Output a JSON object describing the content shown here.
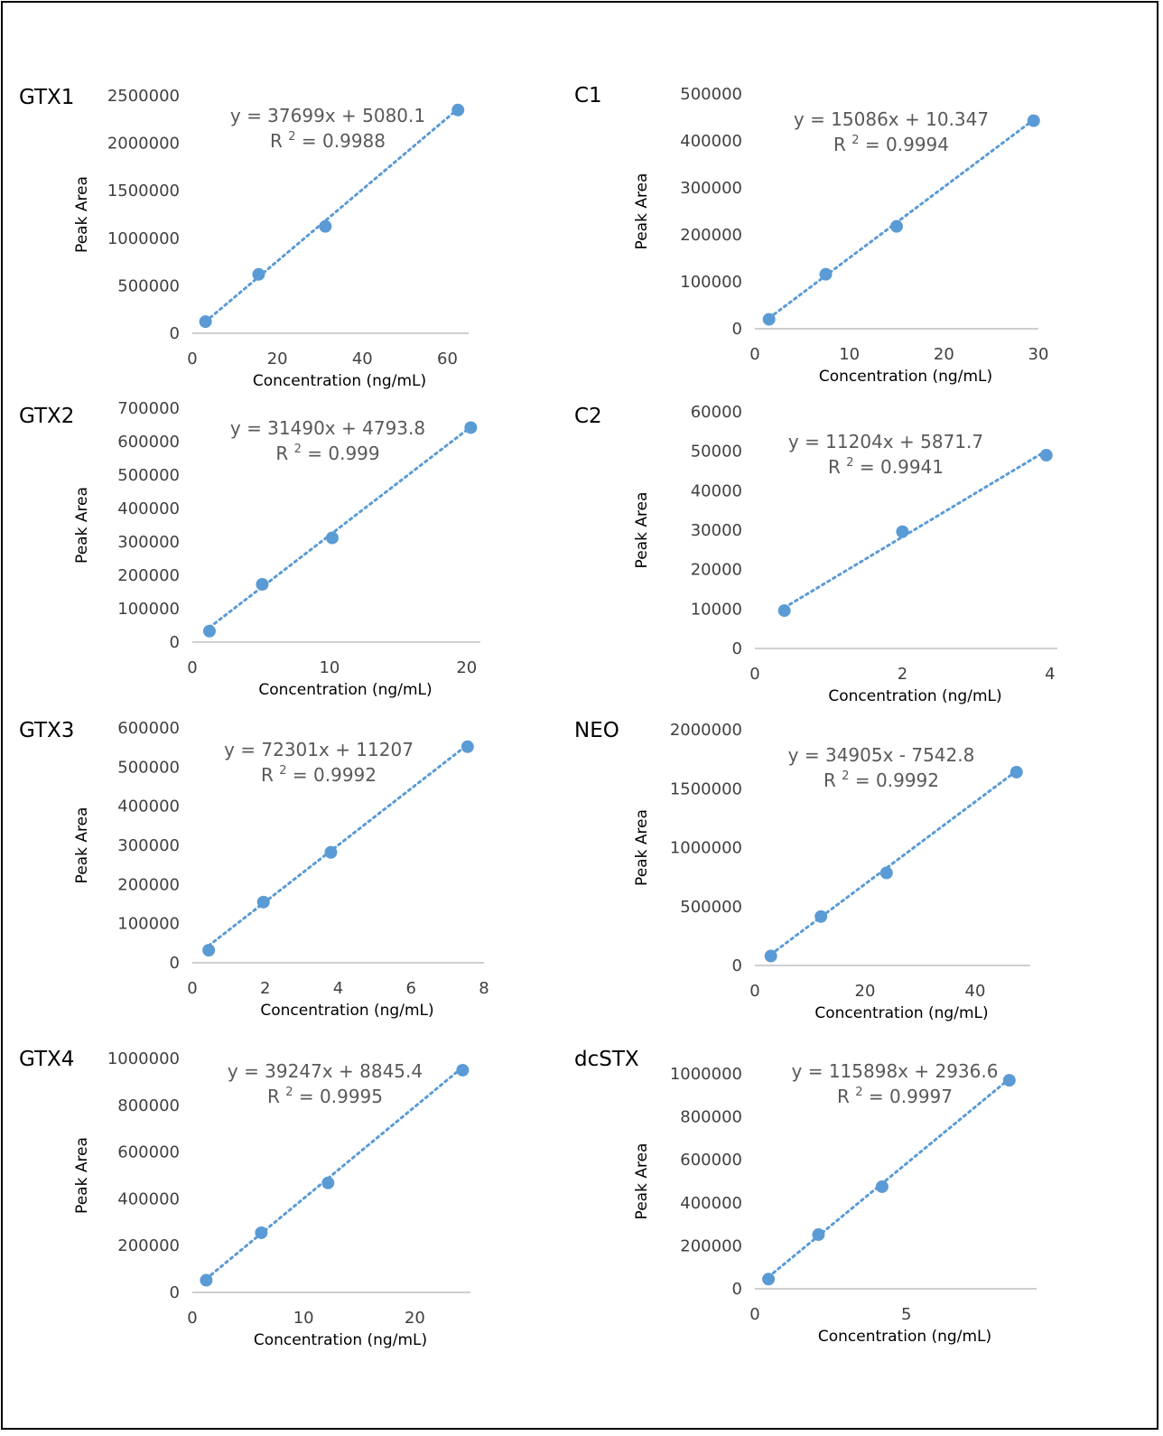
{
  "marker_color": "#5b9bd5",
  "chart_data": [
    {
      "type": "scatter",
      "title": "GTX1",
      "xlabel": "Concentration (ng/mL)",
      "ylabel": "Peak Area",
      "xlim": [
        0,
        65
      ],
      "ylim": [
        0,
        2500000
      ],
      "xticks": [
        "0",
        "20",
        "40",
        "60"
      ],
      "yticks": [
        "0",
        "500000",
        "1000000",
        "1500000",
        "2000000",
        "2500000"
      ],
      "x": [
        3.1,
        15.6,
        31.3,
        62.5
      ],
      "y": [
        122000,
        620000,
        1125000,
        2350000
      ],
      "trendline": {
        "slope": 37699,
        "intercept": 5080.1
      },
      "equation": "y = 37699x + 5080.1",
      "r2_label": "R",
      "r2_sup": "2",
      "r2_value": " = 0.9988"
    },
    {
      "type": "scatter",
      "title": "C1",
      "xlabel": "Concentration (ng/mL)",
      "ylabel": "Peak Area",
      "xlim": [
        0,
        30
      ],
      "ylim": [
        0,
        500000
      ],
      "xticks": [
        "0",
        "10",
        "20",
        "30"
      ],
      "yticks": [
        "0",
        "100000",
        "200000",
        "300000",
        "400000",
        "500000"
      ],
      "x": [
        1.5,
        7.5,
        15,
        29.5
      ],
      "y": [
        20000,
        116000,
        218000,
        443000
      ],
      "trendline": {
        "slope": 15086,
        "intercept": 10.347
      },
      "equation": "y = 15086x + 10.347",
      "r2_label": "R",
      "r2_sup": "2",
      "r2_value": " = 0.9994"
    },
    {
      "type": "scatter",
      "title": "GTX2",
      "xlabel": "Concentration (ng/mL)",
      "ylabel": "Peak Area",
      "xlim": [
        0,
        21
      ],
      "ylim": [
        0,
        700000
      ],
      "xticks": [
        "0",
        "10",
        "20"
      ],
      "yticks": [
        "0",
        "100000",
        "200000",
        "300000",
        "400000",
        "500000",
        "600000",
        "700000"
      ],
      "x": [
        1.25,
        5.1,
        10.2,
        20.3
      ],
      "y": [
        33000,
        173000,
        312000,
        642000
      ],
      "trendline": {
        "slope": 31490,
        "intercept": 4793.8
      },
      "equation": "y = 31490x + 4793.8",
      "r2_label": "R",
      "r2_sup": "2",
      "r2_value": " = 0.999"
    },
    {
      "type": "scatter",
      "title": "C2",
      "xlabel": "Concentration (ng/mL)",
      "ylabel": "Peak Area",
      "xlim": [
        0,
        4.1
      ],
      "ylim": [
        0,
        60000
      ],
      "xticks": [
        "0",
        "2",
        "4"
      ],
      "yticks": [
        "0",
        "10000",
        "20000",
        "30000",
        "40000",
        "50000",
        "60000"
      ],
      "x": [
        0.4,
        2.0,
        3.95
      ],
      "y": [
        9600,
        29600,
        49000
      ],
      "trendline": {
        "slope": 11204,
        "intercept": 5871.7
      },
      "equation": "y = 11204x + 5871.7",
      "r2_label": "R",
      "r2_sup": "2",
      "r2_value": " = 0.9941"
    },
    {
      "type": "scatter",
      "title": "GTX3",
      "xlabel": "Concentration (ng/mL)",
      "ylabel": "Peak Area",
      "xlim": [
        0,
        8
      ],
      "ylim": [
        0,
        600000
      ],
      "xticks": [
        "0",
        "2",
        "4",
        "6",
        "8"
      ],
      "yticks": [
        "0",
        "100000",
        "200000",
        "300000",
        "400000",
        "500000",
        "600000"
      ],
      "x": [
        0.45,
        1.95,
        3.8,
        7.55
      ],
      "y": [
        32000,
        155000,
        282000,
        552000
      ],
      "trendline": {
        "slope": 72301,
        "intercept": 11207
      },
      "equation": "y = 72301x + 11207",
      "r2_label": "R",
      "r2_sup": "2",
      "r2_value": " = 0.9992"
    },
    {
      "type": "scatter",
      "title": "NEO",
      "xlabel": "Concentration (ng/mL)",
      "ylabel": "Peak Area",
      "xlim": [
        0,
        50
      ],
      "ylim": [
        0,
        2000000
      ],
      "xticks": [
        "0",
        "20",
        "40"
      ],
      "yticks": [
        "0",
        "500000",
        "1000000",
        "1500000",
        "2000000"
      ],
      "x": [
        2.9,
        12.0,
        23.9,
        47.5
      ],
      "y": [
        80000,
        415000,
        785000,
        1640000
      ],
      "trendline": {
        "slope": 34905,
        "intercept": -7542.8
      },
      "equation": "y = 34905x - 7542.8",
      "r2_label": "R",
      "r2_sup": "2",
      "r2_value": " = 0.9992"
    },
    {
      "type": "scatter",
      "title": "GTX4",
      "xlabel": "Concentration (ng/mL)",
      "ylabel": "Peak Area",
      "xlim": [
        0,
        25
      ],
      "ylim": [
        0,
        1000000
      ],
      "xticks": [
        "0",
        "10",
        "20"
      ],
      "yticks": [
        "0",
        "200000",
        "400000",
        "600000",
        "800000",
        "1000000"
      ],
      "x": [
        1.25,
        6.2,
        12.2,
        24.3
      ],
      "y": [
        52000,
        255000,
        468000,
        950000
      ],
      "trendline": {
        "slope": 39247,
        "intercept": 8845.4
      },
      "equation": "y = 39247x + 8845.4",
      "r2_label": "R",
      "r2_sup": "2",
      "r2_value": " = 0.9995"
    },
    {
      "type": "scatter",
      "title": "dcSTX",
      "xlabel": "Concentration (ng/mL)",
      "ylabel": "Peak Area",
      "xlim": [
        0,
        9.3
      ],
      "ylim": [
        0,
        1000000
      ],
      "xticks": [
        "0",
        "5"
      ],
      "yticks": [
        "0",
        "200000",
        "400000",
        "600000",
        "800000",
        "1000000"
      ],
      "x": [
        0.45,
        2.1,
        4.2,
        8.4
      ],
      "y": [
        45000,
        252000,
        475000,
        970000
      ],
      "trendline": {
        "slope": 115898,
        "intercept": 2936.6
      },
      "equation": "y = 115898x + 2936.6",
      "r2_label": "R",
      "r2_sup": "2",
      "r2_value": " = 0.9997"
    }
  ]
}
